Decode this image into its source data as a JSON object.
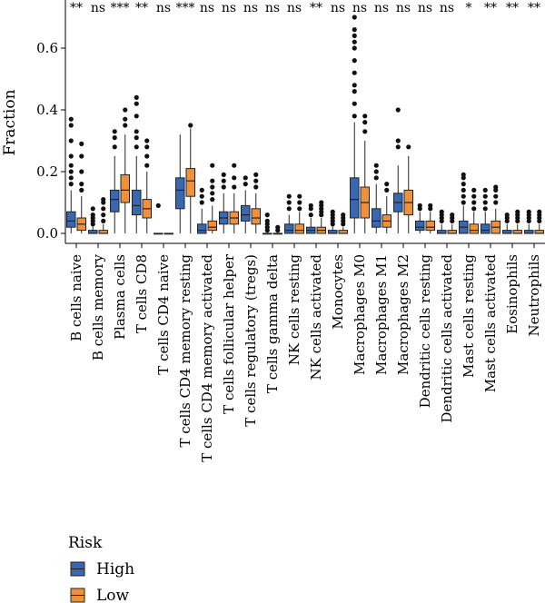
{
  "chart_data": {
    "type": "boxplot",
    "ylabel": "Fraction",
    "ylim": [
      -0.02,
      0.72
    ],
    "yticks": [
      0.0,
      0.2,
      0.4,
      0.6
    ],
    "ytick_labels": [
      "0.0",
      "0.2",
      "0.4",
      "0.6"
    ],
    "legend": {
      "title": "Risk",
      "placement": "bottom-left",
      "items": [
        {
          "name": "High",
          "color": "#3a67ad"
        },
        {
          "name": "Low",
          "color": "#f0913a"
        }
      ]
    },
    "categories": [
      "B cells naive",
      "B cells memory",
      "Plasma cells",
      "T cells CD8",
      "T cells CD4 naive",
      "T cells CD4 memory resting",
      "T cells CD4 memory activated",
      "T cells follicular helper",
      "T cells regulatory (tregs)",
      "T cells gamma delta",
      "NK cells resting",
      "NK cells activated",
      "Monocytes",
      "Macrophages M0",
      "Macrophages M1",
      "Macrophages M2",
      "Dendritic cells resting",
      "Dendritic cells activated",
      "Mast cells resting",
      "Mast cells activated",
      "Eosinophils",
      "Neutrophils"
    ],
    "significance": [
      "**",
      "ns",
      "***",
      "**",
      "ns",
      "***",
      "ns",
      "ns",
      "ns",
      "ns",
      "ns",
      "**",
      "ns",
      "ns",
      "ns",
      "ns",
      "ns",
      "ns",
      "*",
      "**",
      "**",
      "**"
    ],
    "series": [
      {
        "name": "High",
        "boxes": [
          {
            "q1": 0.02,
            "med": 0.04,
            "q3": 0.07,
            "wlo": 0.0,
            "whi": 0.14,
            "out": [
              0.16,
              0.18,
              0.2,
              0.22,
              0.25,
              0.3,
              0.35,
              0.37
            ]
          },
          {
            "q1": 0.0,
            "med": 0.0,
            "q3": 0.01,
            "wlo": 0.0,
            "whi": 0.025,
            "out": [
              0.03,
              0.04,
              0.05,
              0.06,
              0.08
            ]
          },
          {
            "q1": 0.07,
            "med": 0.11,
            "q3": 0.14,
            "wlo": 0.0,
            "whi": 0.25,
            "out": [
              0.28,
              0.31,
              0.33
            ]
          },
          {
            "q1": 0.06,
            "med": 0.09,
            "q3": 0.14,
            "wlo": 0.0,
            "whi": 0.25,
            "out": [
              0.28,
              0.31,
              0.33,
              0.38,
              0.42,
              0.44
            ]
          },
          {
            "q1": 0.0,
            "med": 0.0,
            "q3": 0.0,
            "wlo": 0.0,
            "whi": 0.0,
            "out": [
              0.09
            ]
          },
          {
            "q1": 0.08,
            "med": 0.14,
            "q3": 0.18,
            "wlo": 0.0,
            "whi": 0.32,
            "out": []
          },
          {
            "q1": 0.0,
            "med": 0.01,
            "q3": 0.03,
            "wlo": 0.0,
            "whi": 0.08,
            "out": [
              0.1,
              0.12,
              0.14
            ]
          },
          {
            "q1": 0.03,
            "med": 0.05,
            "q3": 0.07,
            "wlo": 0.0,
            "whi": 0.13,
            "out": [
              0.15,
              0.17,
              0.19
            ]
          },
          {
            "q1": 0.04,
            "med": 0.06,
            "q3": 0.09,
            "wlo": 0.0,
            "whi": 0.14,
            "out": [
              0.16,
              0.18
            ]
          },
          {
            "q1": 0.0,
            "med": 0.0,
            "q3": 0.0,
            "wlo": 0.0,
            "whi": 0.0,
            "out": [
              0.01,
              0.02,
              0.03,
              0.04,
              0.06
            ]
          },
          {
            "q1": 0.0,
            "med": 0.01,
            "q3": 0.03,
            "wlo": 0.0,
            "whi": 0.06,
            "out": [
              0.08,
              0.1,
              0.12
            ]
          },
          {
            "q1": 0.0,
            "med": 0.01,
            "q3": 0.02,
            "wlo": 0.0,
            "whi": 0.05,
            "out": [
              0.06,
              0.08,
              0.09
            ]
          },
          {
            "q1": 0.0,
            "med": 0.0,
            "q3": 0.01,
            "wlo": 0.0,
            "whi": 0.025,
            "out": [
              0.03,
              0.04,
              0.05,
              0.06,
              0.07
            ]
          },
          {
            "q1": 0.05,
            "med": 0.11,
            "q3": 0.18,
            "wlo": 0.0,
            "whi": 0.36,
            "out": [
              0.38,
              0.42,
              0.46,
              0.48,
              0.52,
              0.56,
              0.6,
              0.62,
              0.64,
              0.66,
              0.7
            ]
          },
          {
            "q1": 0.02,
            "med": 0.04,
            "q3": 0.08,
            "wlo": 0.0,
            "whi": 0.16,
            "out": [
              0.18,
              0.2,
              0.22
            ]
          },
          {
            "q1": 0.07,
            "med": 0.1,
            "q3": 0.13,
            "wlo": 0.0,
            "whi": 0.22,
            "out": [
              0.28,
              0.3,
              0.4
            ]
          },
          {
            "q1": 0.01,
            "med": 0.02,
            "q3": 0.04,
            "wlo": 0.0,
            "whi": 0.07,
            "out": [
              0.08,
              0.09
            ]
          },
          {
            "q1": 0.0,
            "med": 0.0,
            "q3": 0.01,
            "wlo": 0.0,
            "whi": 0.03,
            "out": [
              0.04,
              0.05,
              0.06,
              0.07
            ]
          },
          {
            "q1": 0.0,
            "med": 0.02,
            "q3": 0.04,
            "wlo": 0.0,
            "whi": 0.09,
            "out": [
              0.1,
              0.12,
              0.14,
              0.16,
              0.18,
              0.19
            ]
          },
          {
            "q1": 0.0,
            "med": 0.01,
            "q3": 0.03,
            "wlo": 0.0,
            "whi": 0.07,
            "out": [
              0.08,
              0.1,
              0.12,
              0.14
            ]
          },
          {
            "q1": 0.0,
            "med": 0.0,
            "q3": 0.01,
            "wlo": 0.0,
            "whi": 0.03,
            "out": [
              0.04,
              0.05,
              0.06
            ]
          },
          {
            "q1": 0.0,
            "med": 0.0,
            "q3": 0.01,
            "wlo": 0.0,
            "whi": 0.03,
            "out": [
              0.04,
              0.05,
              0.06,
              0.07
            ]
          }
        ]
      },
      {
        "name": "Low",
        "boxes": [
          {
            "q1": 0.01,
            "med": 0.03,
            "q3": 0.05,
            "wlo": 0.0,
            "whi": 0.12,
            "out": [
              0.14,
              0.16,
              0.2,
              0.25,
              0.29
            ]
          },
          {
            "q1": 0.0,
            "med": 0.0,
            "q3": 0.01,
            "wlo": 0.0,
            "whi": 0.03,
            "out": [
              0.04,
              0.06,
              0.08,
              0.1,
              0.11
            ]
          },
          {
            "q1": 0.1,
            "med": 0.14,
            "q3": 0.19,
            "wlo": 0.0,
            "whi": 0.32,
            "out": [
              0.35,
              0.37,
              0.4
            ]
          },
          {
            "q1": 0.05,
            "med": 0.08,
            "q3": 0.11,
            "wlo": 0.0,
            "whi": 0.2,
            "out": [
              0.22,
              0.25,
              0.28,
              0.3
            ]
          },
          {
            "q1": 0.0,
            "med": 0.0,
            "q3": 0.0,
            "wlo": 0.0,
            "whi": 0.0,
            "out": []
          },
          {
            "q1": 0.12,
            "med": 0.17,
            "q3": 0.21,
            "wlo": 0.0,
            "whi": 0.34,
            "out": [
              0.35
            ]
          },
          {
            "q1": 0.01,
            "med": 0.02,
            "q3": 0.04,
            "wlo": 0.0,
            "whi": 0.09,
            "out": [
              0.11,
              0.13,
              0.15,
              0.17,
              0.22
            ]
          },
          {
            "q1": 0.03,
            "med": 0.05,
            "q3": 0.07,
            "wlo": 0.0,
            "whi": 0.13,
            "out": [
              0.15,
              0.18,
              0.22
            ]
          },
          {
            "q1": 0.03,
            "med": 0.05,
            "q3": 0.08,
            "wlo": 0.0,
            "whi": 0.13,
            "out": [
              0.15,
              0.17,
              0.19
            ]
          },
          {
            "q1": 0.0,
            "med": 0.0,
            "q3": 0.0,
            "wlo": 0.0,
            "whi": 0.0,
            "out": [
              0.01,
              0.02
            ]
          },
          {
            "q1": 0.0,
            "med": 0.01,
            "q3": 0.03,
            "wlo": 0.0,
            "whi": 0.07,
            "out": [
              0.08,
              0.1,
              0.12
            ]
          },
          {
            "q1": 0.0,
            "med": 0.01,
            "q3": 0.02,
            "wlo": 0.0,
            "whi": 0.05,
            "out": [
              0.06,
              0.07,
              0.08,
              0.09,
              0.1
            ]
          },
          {
            "q1": 0.0,
            "med": 0.0,
            "q3": 0.01,
            "wlo": 0.0,
            "whi": 0.02,
            "out": [
              0.03,
              0.04,
              0.05,
              0.06
            ]
          },
          {
            "q1": 0.05,
            "med": 0.1,
            "q3": 0.15,
            "wlo": 0.0,
            "whi": 0.3,
            "out": [
              0.33,
              0.36,
              0.38
            ]
          },
          {
            "q1": 0.02,
            "med": 0.04,
            "q3": 0.06,
            "wlo": 0.0,
            "whi": 0.12,
            "out": [
              0.14,
              0.16
            ]
          },
          {
            "q1": 0.06,
            "med": 0.1,
            "q3": 0.14,
            "wlo": 0.0,
            "whi": 0.25,
            "out": [
              0.28
            ]
          },
          {
            "q1": 0.01,
            "med": 0.02,
            "q3": 0.04,
            "wlo": 0.0,
            "whi": 0.07,
            "out": [
              0.08,
              0.09
            ]
          },
          {
            "q1": 0.0,
            "med": 0.0,
            "q3": 0.01,
            "wlo": 0.0,
            "whi": 0.03,
            "out": [
              0.04,
              0.05,
              0.06
            ]
          },
          {
            "q1": 0.0,
            "med": 0.01,
            "q3": 0.03,
            "wlo": 0.0,
            "whi": 0.07,
            "out": [
              0.08,
              0.1,
              0.12,
              0.14
            ]
          },
          {
            "q1": 0.0,
            "med": 0.02,
            "q3": 0.04,
            "wlo": 0.0,
            "whi": 0.08,
            "out": [
              0.1,
              0.12,
              0.14,
              0.15
            ]
          },
          {
            "q1": 0.0,
            "med": 0.0,
            "q3": 0.01,
            "wlo": 0.0,
            "whi": 0.03,
            "out": [
              0.04,
              0.05,
              0.06,
              0.07
            ]
          },
          {
            "q1": 0.0,
            "med": 0.0,
            "q3": 0.01,
            "wlo": 0.0,
            "whi": 0.03,
            "out": [
              0.04,
              0.05,
              0.06,
              0.07
            ]
          }
        ]
      }
    ]
  }
}
